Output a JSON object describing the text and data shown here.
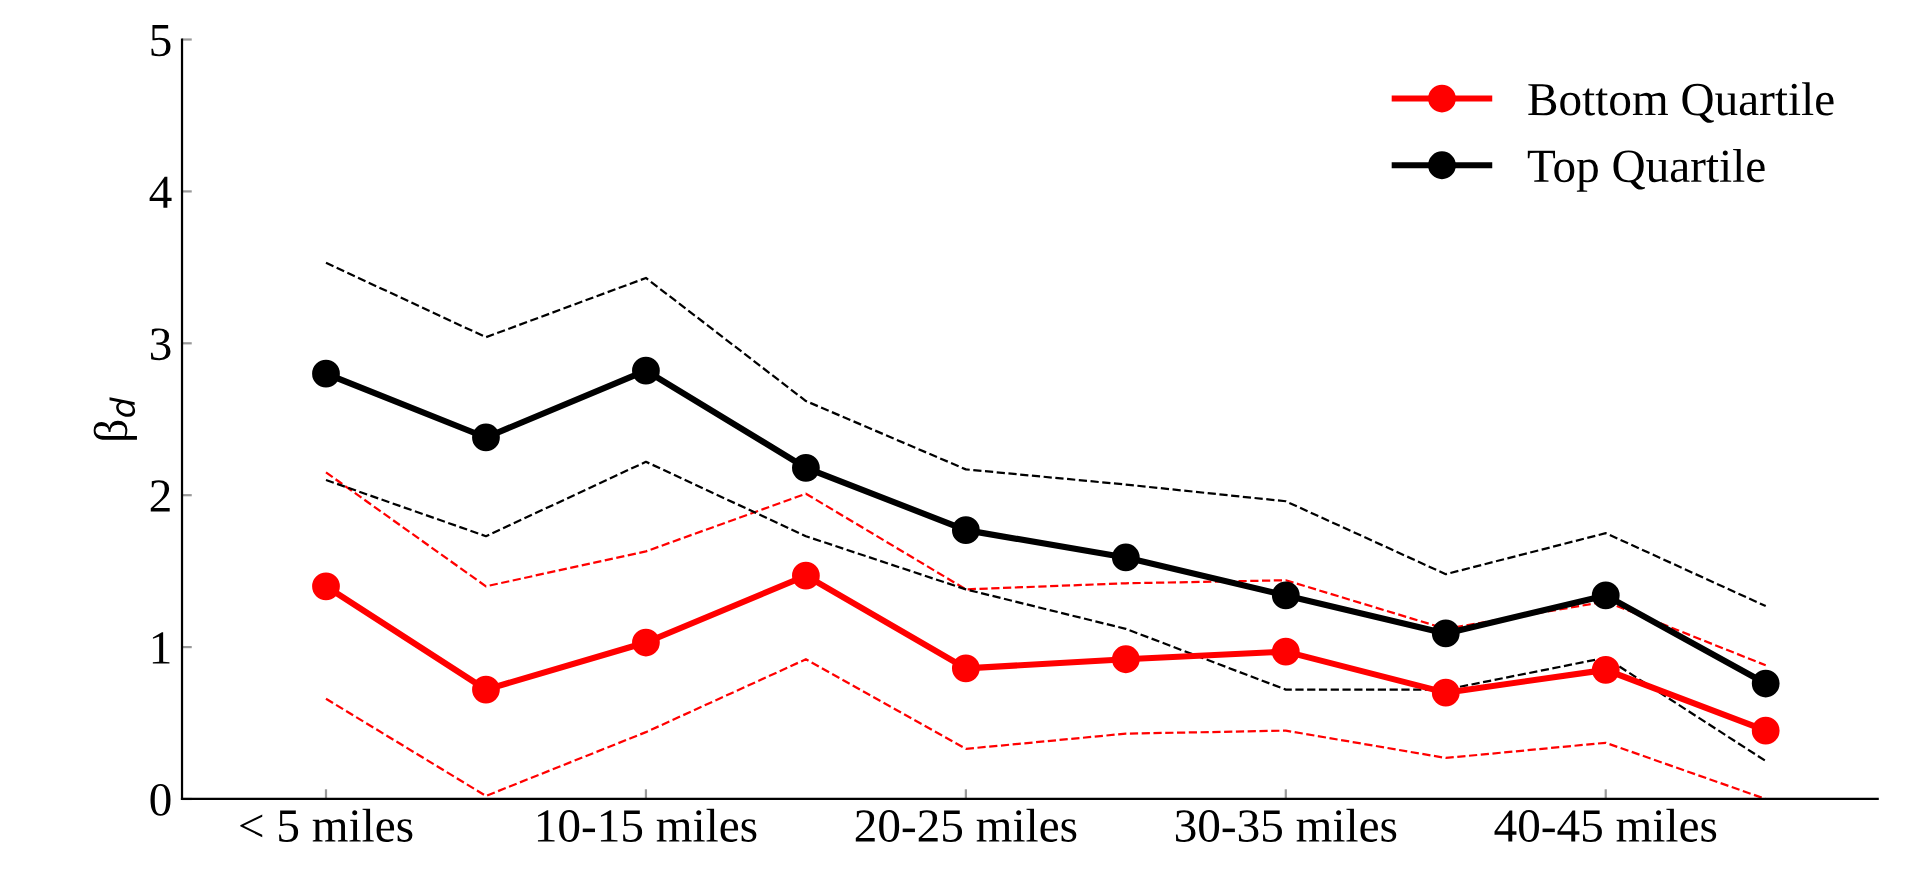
{
  "chart_data": {
    "type": "line",
    "ylabel": "β$_{d}$",
    "categories": [
      "< 5 miles",
      null,
      "10-15 miles",
      null,
      "20-25 miles",
      null,
      "30-35 miles",
      null,
      "40-45 miles",
      null
    ],
    "series": [
      {
        "name": "Bottom Quartile",
        "color": "#ff0000",
        "values": [
          1.4,
          0.72,
          1.03,
          1.47,
          0.86,
          0.92,
          0.97,
          0.7,
          0.85,
          0.45
        ]
      },
      {
        "name": "Top Quartile",
        "color": "#000000",
        "values": [
          2.8,
          2.38,
          2.82,
          2.18,
          1.77,
          1.59,
          1.34,
          1.09,
          1.34,
          0.76
        ]
      },
      {
        "color": "#ff0000",
        "line_style": "dashed",
        "marker": "none",
        "values": [
          0.66,
          0.02,
          0.44,
          0.92,
          0.33,
          0.43,
          0.45,
          0.27,
          0.37,
          0.0
        ]
      },
      {
        "color": "#ff0000",
        "line_style": "dashed",
        "marker": "none",
        "values": [
          2.15,
          1.4,
          1.63,
          2.01,
          1.38,
          1.42,
          1.44,
          1.12,
          1.3,
          0.88
        ]
      },
      {
        "color": "#000000",
        "line_style": "dashed",
        "marker": "none",
        "values": [
          2.1,
          1.73,
          2.22,
          1.73,
          1.38,
          1.12,
          0.72,
          0.72,
          0.93,
          0.25
        ]
      },
      {
        "color": "#000000",
        "line_style": "dashed",
        "marker": "none",
        "values": [
          3.53,
          3.04,
          3.43,
          2.62,
          2.17,
          2.07,
          1.96,
          1.48,
          1.75,
          1.27
        ]
      }
    ],
    "ylim": [
      0,
      5
    ],
    "yticks": [
      0,
      1,
      2,
      3,
      4,
      5
    ],
    "grid": false,
    "legend": "top right",
    "marker": "circle",
    "line_style": "solid"
  }
}
